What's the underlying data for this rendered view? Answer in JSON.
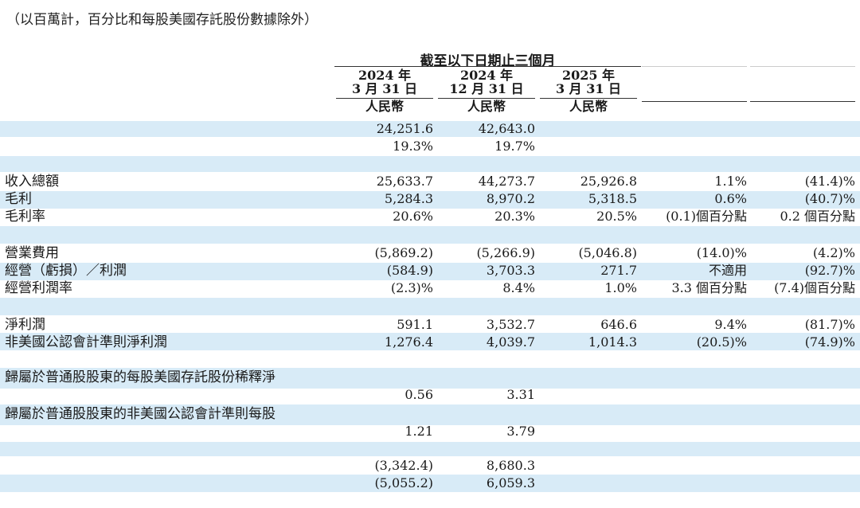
{
  "note": "（以百萬計，百分比和每股美國存託股份數據除外）",
  "header": {
    "group_title": "截至以下日期止三個月",
    "columns": [
      {
        "year": "2024 年",
        "date": "3 月 31 日",
        "currency": "人民幣"
      },
      {
        "year": "2024 年",
        "date": "12 月 31 日",
        "currency": "人民幣"
      },
      {
        "year": "2025 年",
        "date": "3 月 31 日",
        "currency": "人民幣"
      }
    ]
  },
  "rows": [
    {
      "label": "",
      "values": [
        "24,251.6",
        "42,643.0",
        "",
        "",
        ""
      ]
    },
    {
      "label": "",
      "values": [
        "19.3%",
        "19.7%",
        "",
        "",
        ""
      ]
    },
    {
      "label": "收入總額",
      "values": [
        "25,633.7",
        "44,273.7",
        "25,926.8",
        "1.1%",
        "(41.4)%"
      ]
    },
    {
      "label": "毛利",
      "values": [
        "5,284.3",
        "8,970.2",
        "5,318.5",
        "0.6%",
        "(40.7)%"
      ]
    },
    {
      "label": "毛利率",
      "values": [
        "20.6%",
        "20.3%",
        "20.5%",
        "(0.1)個百分點",
        "0.2 個百分點"
      ]
    },
    {
      "label": "營業費用",
      "values": [
        "(5,869.2)",
        "(5,266.9)",
        "(5,046.8)",
        "(14.0)%",
        "(4.2)%"
      ]
    },
    {
      "label": "經營（虧損）／利潤",
      "values": [
        "(584.9)",
        "3,703.3",
        "271.7",
        "不適用",
        "(92.7)%"
      ]
    },
    {
      "label": "經營利潤率",
      "values": [
        "(2.3)%",
        "8.4%",
        "1.0%",
        "3.3 個百分點",
        "(7.4)個百分點"
      ]
    },
    {
      "label": "淨利潤",
      "values": [
        "591.1",
        "3,532.7",
        "646.6",
        "9.4%",
        "(81.7)%"
      ]
    },
    {
      "label": "非美國公認會計準則淨利潤",
      "values": [
        "1,276.4",
        "4,039.7",
        "1,014.3",
        "(20.5)%",
        "(74.9)%"
      ]
    },
    {
      "label": "歸屬於普通股股東的每股美國存託股份稀釋淨",
      "values": [
        "",
        "",
        "",
        "",
        ""
      ]
    },
    {
      "label": "",
      "values": [
        "0.56",
        "3.31",
        "",
        "",
        ""
      ]
    },
    {
      "label": "歸屬於普通股股東的非美國公認會計準則每股",
      "values": [
        "",
        "",
        "",
        "",
        ""
      ]
    },
    {
      "label": "",
      "values": [
        "1.21",
        "3.79",
        "",
        "",
        ""
      ]
    },
    {
      "label": "",
      "values": [
        "(3,342.4)",
        "8,680.3",
        "",
        "",
        ""
      ]
    },
    {
      "label": "",
      "values": [
        "(5,055.2)",
        "6,059.3",
        "",
        "",
        ""
      ]
    }
  ]
}
